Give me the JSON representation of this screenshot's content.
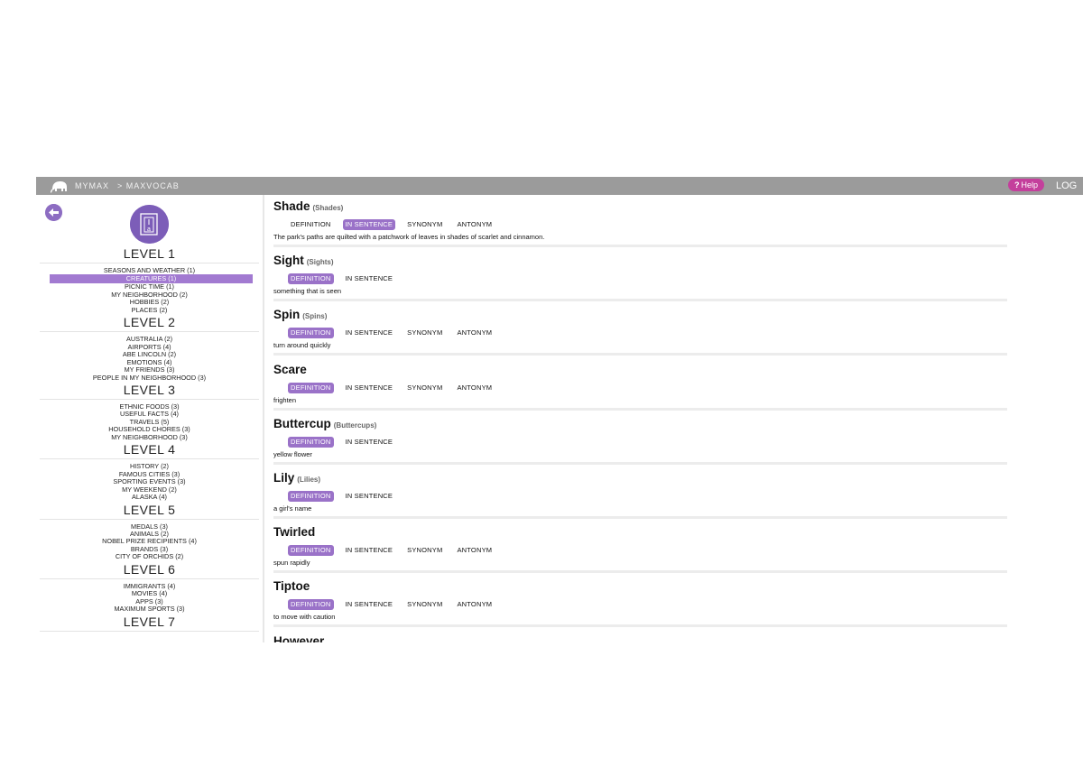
{
  "topbar": {
    "breadcrumb_home": "MYMAX",
    "breadcrumb_current": "> MAXVOCAB",
    "help_label": "Help",
    "logout_label": "LOG"
  },
  "sidebar": {
    "levels": [
      {
        "title": "LEVEL 1",
        "topics": [
          "SEASONS AND WEATHER (1)",
          "CREATURES (1)",
          "PICNIC TIME (1)",
          "MY NEIGHBORHOOD (2)",
          "HOBBIES (2)",
          "PLACES (2)"
        ],
        "active_index": 1
      },
      {
        "title": "LEVEL 2",
        "topics": [
          "AUSTRALIA (2)",
          "AIRPORTS (4)",
          "ABE LINCOLN (2)",
          "EMOTIONS (4)",
          "MY FRIENDS (3)",
          "PEOPLE IN MY NEIGHBORHOOD (3)"
        ]
      },
      {
        "title": "LEVEL 3",
        "topics": [
          "ETHNIC FOODS (3)",
          "USEFUL FACTS (4)",
          "TRAVELS (5)",
          "HOUSEHOLD CHORES (3)",
          "MY NEIGHBORHOOD (3)"
        ]
      },
      {
        "title": "LEVEL 4",
        "topics": [
          "HISTORY (2)",
          "FAMOUS CITIES (3)",
          "SPORTING EVENTS (3)",
          "MY WEEKEND (2)",
          "ALASKA (4)"
        ]
      },
      {
        "title": "LEVEL 5",
        "topics": [
          "MEDALS (3)",
          "ANIMALS (2)",
          "NOBEL PRIZE RECIPIENTS (4)",
          "BRANDS (3)",
          "CITY OF ORCHIDS (2)"
        ]
      },
      {
        "title": "LEVEL 6",
        "topics": [
          "IMMIGRANTS (4)",
          "MOVIES (4)",
          "APPS (3)",
          "MAXIMUM SPORTS (3)"
        ]
      },
      {
        "title": "LEVEL 7",
        "topics": []
      }
    ]
  },
  "words": [
    {
      "name": "Shade",
      "plural": "(Shades)",
      "tabs": [
        "DEFINITION",
        "IN SENTENCE",
        "SYNONYM",
        "ANTONYM"
      ],
      "selected": 1,
      "text": "The park's paths are quilted with a patchwork of leaves in shades of scarlet and cinnamon."
    },
    {
      "name": "Sight",
      "plural": "(Sights)",
      "tabs": [
        "DEFINITION",
        "IN SENTENCE"
      ],
      "selected": 0,
      "text": "something that is seen"
    },
    {
      "name": "Spin",
      "plural": "(Spins)",
      "tabs": [
        "DEFINITION",
        "IN SENTENCE",
        "SYNONYM",
        "ANTONYM"
      ],
      "selected": 0,
      "text": "turn around quickly"
    },
    {
      "name": "Scare",
      "plural": "",
      "tabs": [
        "DEFINITION",
        "IN SENTENCE",
        "SYNONYM",
        "ANTONYM"
      ],
      "selected": 0,
      "text": "frighten"
    },
    {
      "name": "Buttercup",
      "plural": "(Buttercups)",
      "tabs": [
        "DEFINITION",
        "IN SENTENCE"
      ],
      "selected": 0,
      "text": "yellow flower"
    },
    {
      "name": "Lily",
      "plural": "(Lilies)",
      "tabs": [
        "DEFINITION",
        "IN SENTENCE"
      ],
      "selected": 0,
      "text": "a girl's name"
    },
    {
      "name": "Twirled",
      "plural": "",
      "tabs": [
        "DEFINITION",
        "IN SENTENCE",
        "SYNONYM",
        "ANTONYM"
      ],
      "selected": 0,
      "text": "spun rapidly"
    },
    {
      "name": "Tiptoe",
      "plural": "",
      "tabs": [
        "DEFINITION",
        "IN SENTENCE",
        "SYNONYM",
        "ANTONYM"
      ],
      "selected": 0,
      "text": "to move with caution"
    },
    {
      "name": "However",
      "plural": "",
      "tabs": [],
      "selected": -1,
      "text": ""
    }
  ],
  "colors": {
    "topbar": "#9b9b9b",
    "accent": "#9a72c8",
    "help": "#c43f9c"
  },
  "icons": {
    "logo": "elephant-logo-icon",
    "back": "back-arrow-icon",
    "app": "vocab-book-icon"
  }
}
